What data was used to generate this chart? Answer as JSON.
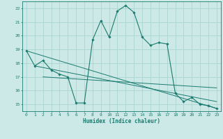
{
  "xlabel": "Humidex (Indice chaleur)",
  "bg_color": "#cce9e7",
  "grid_color": "#aad4d0",
  "line_color": "#1a7a6e",
  "xlim": [
    -0.5,
    23.5
  ],
  "ylim": [
    14.5,
    22.5
  ],
  "yticks": [
    15,
    16,
    17,
    18,
    19,
    20,
    21,
    22
  ],
  "xticks": [
    0,
    1,
    2,
    3,
    4,
    5,
    6,
    7,
    8,
    9,
    10,
    11,
    12,
    13,
    14,
    15,
    16,
    17,
    18,
    19,
    20,
    21,
    22,
    23
  ],
  "series1_x": [
    0,
    1,
    2,
    3,
    4,
    5,
    6,
    7,
    8,
    9,
    10,
    11,
    12,
    13,
    14,
    15,
    16,
    17,
    18,
    19,
    20,
    21,
    22,
    23
  ],
  "series1_y": [
    18.9,
    17.8,
    18.2,
    17.5,
    17.2,
    17.0,
    15.1,
    15.1,
    19.7,
    21.1,
    19.9,
    21.8,
    22.2,
    21.7,
    19.9,
    19.3,
    19.5,
    19.4,
    15.8,
    15.2,
    15.5,
    15.0,
    14.9,
    14.7
  ],
  "series2_x": [
    0,
    23
  ],
  "series2_y": [
    18.9,
    14.7
  ],
  "series3_x": [
    1,
    23
  ],
  "series3_y": [
    17.8,
    15.2
  ],
  "series4_x": [
    2,
    23
  ],
  "series4_y": [
    17.0,
    16.2
  ]
}
